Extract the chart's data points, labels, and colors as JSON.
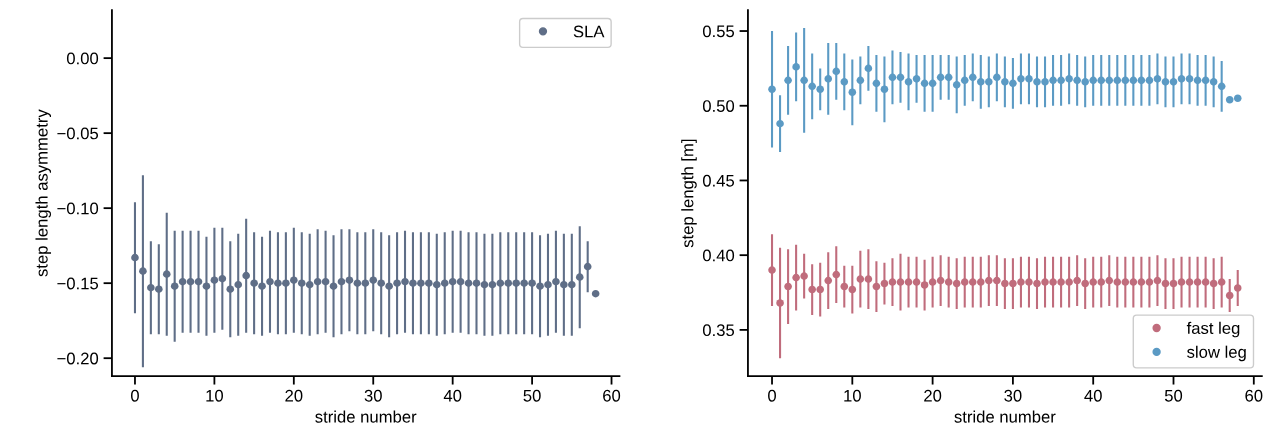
{
  "chart_data": [
    {
      "type": "scatter",
      "xlabel": "stride number",
      "ylabel": "step length asymmetry",
      "legend": "top right",
      "marker": "circle",
      "grid": false,
      "x": [
        0,
        1,
        2,
        3,
        4,
        5,
        6,
        7,
        8,
        9,
        10,
        11,
        12,
        13,
        14,
        15,
        16,
        17,
        18,
        19,
        20,
        21,
        22,
        23,
        24,
        25,
        26,
        27,
        28,
        29,
        30,
        31,
        32,
        33,
        34,
        35,
        36,
        37,
        38,
        39,
        40,
        41,
        42,
        43,
        44,
        45,
        46,
        47,
        48,
        49,
        50,
        51,
        52,
        53,
        54,
        55,
        56,
        57,
        58
      ],
      "xlim": [
        -2.9,
        61
      ],
      "xticks": [
        0,
        10,
        20,
        30,
        40,
        50,
        60
      ],
      "ylim": [
        -0.212,
        0.032
      ],
      "yticks": [
        {
          "value": 0,
          "label": "0.00"
        },
        {
          "value": -0.05,
          "label": "−0.05"
        },
        {
          "value": -0.1,
          "label": "−0.10"
        },
        {
          "value": -0.15,
          "label": "−0.15"
        },
        {
          "value": -0.2,
          "label": "−0.20"
        }
      ],
      "series": [
        {
          "name": "SLA",
          "color": "#5f6e87",
          "values": [
            -0.133,
            -0.142,
            -0.153,
            -0.154,
            -0.144,
            -0.152,
            -0.149,
            -0.149,
            -0.149,
            -0.152,
            -0.148,
            -0.147,
            -0.154,
            -0.151,
            -0.145,
            -0.15,
            -0.152,
            -0.149,
            -0.15,
            -0.15,
            -0.148,
            -0.15,
            -0.151,
            -0.149,
            -0.149,
            -0.152,
            -0.149,
            -0.148,
            -0.15,
            -0.15,
            -0.148,
            -0.15,
            -0.152,
            -0.15,
            -0.149,
            -0.15,
            -0.15,
            -0.15,
            -0.151,
            -0.15,
            -0.149,
            -0.149,
            -0.15,
            -0.15,
            -0.151,
            -0.151,
            -0.15,
            -0.15,
            -0.15,
            -0.15,
            -0.15,
            -0.152,
            -0.151,
            -0.149,
            -0.151,
            -0.151,
            -0.146,
            -0.139,
            -0.157
          ],
          "errors": [
            0.037,
            0.064,
            0.031,
            0.03,
            0.041,
            0.037,
            0.034,
            0.034,
            0.034,
            0.033,
            0.035,
            0.034,
            0.032,
            0.034,
            0.038,
            0.034,
            0.033,
            0.034,
            0.034,
            0.034,
            0.035,
            0.034,
            0.034,
            0.035,
            0.034,
            0.034,
            0.035,
            0.034,
            0.034,
            0.034,
            0.034,
            0.034,
            0.034,
            0.034,
            0.034,
            0.034,
            0.034,
            0.034,
            0.034,
            0.034,
            0.034,
            0.034,
            0.034,
            0.034,
            0.034,
            0.034,
            0.034,
            0.034,
            0.034,
            0.034,
            0.034,
            0.034,
            0.034,
            0.034,
            0.034,
            0.034,
            0.034,
            0.017,
            null
          ]
        }
      ]
    },
    {
      "type": "scatter",
      "xlabel": "stride number",
      "ylabel": "step length [m]",
      "legend": "bottom right",
      "marker": "circle",
      "grid": false,
      "x": [
        0,
        1,
        2,
        3,
        4,
        5,
        6,
        7,
        8,
        9,
        10,
        11,
        12,
        13,
        14,
        15,
        16,
        17,
        18,
        19,
        20,
        21,
        22,
        23,
        24,
        25,
        26,
        27,
        28,
        29,
        30,
        31,
        32,
        33,
        34,
        35,
        36,
        37,
        38,
        39,
        40,
        41,
        42,
        43,
        44,
        45,
        46,
        47,
        48,
        49,
        50,
        51,
        52,
        53,
        54,
        55,
        56,
        57,
        58
      ],
      "xlim": [
        -3,
        61
      ],
      "xticks": [
        0,
        10,
        20,
        30,
        40,
        50,
        60
      ],
      "ylim": [
        0.319,
        0.564
      ],
      "yticks": [
        {
          "value": 0.35,
          "label": "0.35"
        },
        {
          "value": 0.4,
          "label": "0.40"
        },
        {
          "value": 0.45,
          "label": "0.45"
        },
        {
          "value": 0.5,
          "label": "0.50"
        },
        {
          "value": 0.55,
          "label": "0.55"
        }
      ],
      "series": [
        {
          "name": "fast leg",
          "color": "#c06c7c",
          "values": [
            0.39,
            0.368,
            0.379,
            0.385,
            0.386,
            0.377,
            0.377,
            0.383,
            0.387,
            0.379,
            0.377,
            0.384,
            0.384,
            0.379,
            0.381,
            0.382,
            0.382,
            0.382,
            0.382,
            0.38,
            0.382,
            0.383,
            0.382,
            0.381,
            0.382,
            0.382,
            0.382,
            0.383,
            0.383,
            0.381,
            0.381,
            0.382,
            0.382,
            0.381,
            0.382,
            0.382,
            0.382,
            0.382,
            0.383,
            0.381,
            0.382,
            0.382,
            0.383,
            0.382,
            0.382,
            0.382,
            0.382,
            0.382,
            0.383,
            0.381,
            0.381,
            0.382,
            0.382,
            0.382,
            0.382,
            0.381,
            0.382,
            0.373,
            0.378
          ],
          "errors": [
            0.024,
            0.037,
            0.025,
            0.022,
            0.015,
            0.017,
            0.018,
            0.019,
            0.019,
            0.014,
            0.016,
            0.019,
            0.02,
            0.017,
            0.014,
            0.016,
            0.019,
            0.017,
            0.017,
            0.017,
            0.017,
            0.017,
            0.017,
            0.017,
            0.017,
            0.017,
            0.017,
            0.017,
            0.017,
            0.017,
            0.017,
            0.017,
            0.017,
            0.017,
            0.017,
            0.017,
            0.017,
            0.017,
            0.017,
            0.017,
            0.017,
            0.017,
            0.017,
            0.017,
            0.017,
            0.017,
            0.017,
            0.017,
            0.017,
            0.017,
            0.017,
            0.017,
            0.017,
            0.017,
            0.017,
            0.017,
            0.017,
            0.011,
            0.012
          ]
        },
        {
          "name": "slow leg",
          "color": "#5b9ac4",
          "values": [
            0.511,
            0.488,
            0.517,
            0.526,
            0.517,
            0.513,
            0.511,
            0.518,
            0.523,
            0.516,
            0.509,
            0.517,
            0.525,
            0.515,
            0.511,
            0.519,
            0.519,
            0.516,
            0.518,
            0.515,
            0.515,
            0.519,
            0.519,
            0.514,
            0.517,
            0.519,
            0.516,
            0.516,
            0.519,
            0.516,
            0.515,
            0.518,
            0.518,
            0.516,
            0.516,
            0.517,
            0.517,
            0.518,
            0.517,
            0.516,
            0.517,
            0.517,
            0.517,
            0.517,
            0.517,
            0.517,
            0.517,
            0.517,
            0.518,
            0.516,
            0.516,
            0.518,
            0.518,
            0.517,
            0.517,
            0.516,
            0.513,
            0.504,
            0.505
          ],
          "errors": [
            0.039,
            0.019,
            0.023,
            0.023,
            0.035,
            0.022,
            0.014,
            0.024,
            0.019,
            0.019,
            0.022,
            0.016,
            0.015,
            0.019,
            0.022,
            0.018,
            0.017,
            0.019,
            0.016,
            0.019,
            0.019,
            0.015,
            0.015,
            0.019,
            0.017,
            0.016,
            0.018,
            0.017,
            0.016,
            0.017,
            0.017,
            0.017,
            0.017,
            0.017,
            0.017,
            0.017,
            0.017,
            0.017,
            0.017,
            0.017,
            0.017,
            0.017,
            0.017,
            0.017,
            0.017,
            0.017,
            0.017,
            0.017,
            0.017,
            0.017,
            0.017,
            0.017,
            0.017,
            0.017,
            0.017,
            0.017,
            0.017,
            null,
            null
          ]
        }
      ]
    }
  ]
}
